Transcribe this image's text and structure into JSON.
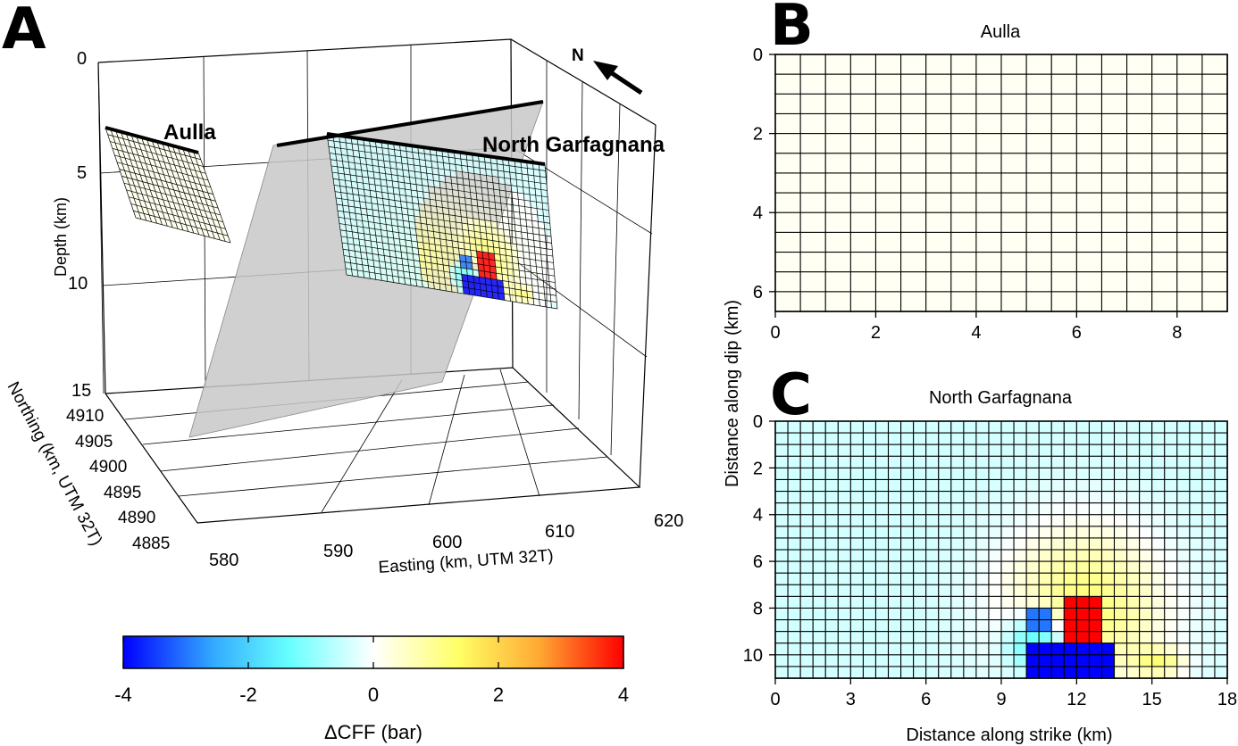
{
  "colors": {
    "cmap": [
      "#0000ff",
      "#33aaff",
      "#66ffff",
      "#ffffff",
      "#ffff66",
      "#ffaa33",
      "#ff0000"
    ],
    "fault_gray": "#c8c8c8",
    "grid_line": "#000000"
  },
  "panels": {
    "a": {
      "letter": "A",
      "depth_axis": {
        "label": "Depth (km)",
        "ticks": [
          "0",
          "5",
          "10",
          "15"
        ]
      },
      "northing_axis": {
        "label": "Northing (km, UTM 32T)",
        "ticks": [
          "4910",
          "4905",
          "4900",
          "4895",
          "4890",
          "4885"
        ]
      },
      "easting_axis": {
        "label": "Easting (km, UTM 32T)",
        "ticks": [
          "580",
          "590",
          "600",
          "610",
          "620"
        ]
      },
      "north_label": "N",
      "north_icon": "north-arrow-icon",
      "fault_labels": {
        "aulla": "Aulla",
        "north_garfagnana": "North Garfagnana"
      }
    },
    "b": {
      "letter": "B",
      "title": "Aulla",
      "xticks": [
        "0",
        "2",
        "4",
        "6",
        "8"
      ],
      "yticks": [
        "0",
        "2",
        "4",
        "6"
      ]
    },
    "c": {
      "letter": "C",
      "title": "North Garfagnana",
      "xticks": [
        "0",
        "3",
        "6",
        "9",
        "12",
        "15",
        "18"
      ],
      "yticks": [
        "0",
        "2",
        "4",
        "6",
        "8",
        "10"
      ],
      "xlabel": "Distance along strike (km)"
    },
    "shared_ylabel": "Distance along dip (km)",
    "colorbar": {
      "label": "ΔCFF (bar)",
      "ticks": [
        "-4",
        "-2",
        "0",
        "2",
        "4"
      ],
      "range": [
        -4,
        4
      ]
    }
  },
  "chart_data": [
    {
      "type": "heatmap",
      "title": "Aulla",
      "ylabel": "Distance along dip (km)",
      "xlim": [
        0,
        9
      ],
      "ylim": [
        0,
        6.5
      ],
      "cols": 18,
      "rows": 13,
      "value_uniform": 0.1,
      "units": "bar"
    },
    {
      "type": "heatmap",
      "title": "North Garfagnana",
      "xlabel": "Distance along strike (km)",
      "ylabel": "Distance along dip (km)",
      "xlim": [
        0,
        18
      ],
      "ylim": [
        0,
        11
      ],
      "cols": 36,
      "rows": 22,
      "units": "bar",
      "background": -0.4,
      "hotspots": [
        {
          "kind": "lobe",
          "x": 12.3,
          "y": 8.0,
          "sx": 3.2,
          "sy": 3.5,
          "value": 1.6
        },
        {
          "kind": "lobe",
          "x": 10.5,
          "y": 9.5,
          "sx": 1.2,
          "sy": 1.3,
          "value": -2.0
        },
        {
          "kind": "lobe",
          "x": 15.3,
          "y": 10.3,
          "sx": 1.0,
          "sy": 0.6,
          "value": 1.2
        }
      ],
      "patches": [
        {
          "x0": 11.5,
          "x1": 13.0,
          "y0": 7.5,
          "y1": 9.5,
          "value": 4
        },
        {
          "x0": 10.0,
          "x1": 13.5,
          "y0": 9.5,
          "y1": 11.0,
          "value": -4
        },
        {
          "x0": 10.0,
          "x1": 11.0,
          "y0": 8.0,
          "y1": 9.0,
          "value": -3
        }
      ]
    }
  ]
}
